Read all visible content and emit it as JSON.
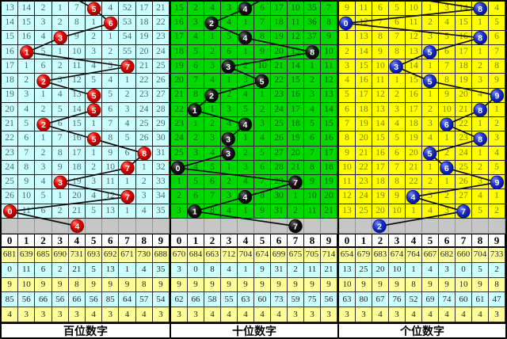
{
  "panels": [
    {
      "key": "hundreds",
      "footer_label": "百位数字",
      "colors": {
        "bg": "#ccffff",
        "text": "#4a6a6a",
        "ball": "#e60000",
        "ball_dark": "#8f0000",
        "ball_light": "#ff8a7a"
      },
      "header": [
        "0",
        "1",
        "2",
        "3",
        "4",
        "5",
        "6",
        "7",
        "8",
        "9"
      ],
      "rows": [
        [
          "13",
          "14",
          "2",
          "1",
          "7",
          "",
          "4",
          "52",
          "17",
          "21"
        ],
        [
          "14",
          "15",
          "3",
          "2",
          "8",
          "1",
          "",
          "53",
          "18",
          "22"
        ],
        [
          "15",
          "16",
          "4",
          "",
          "9",
          "2",
          "1",
          "54",
          "19",
          "23"
        ],
        [
          "16",
          "",
          "5",
          "1",
          "10",
          "3",
          "2",
          "55",
          "20",
          "24"
        ],
        [
          "17",
          "1",
          "6",
          "2",
          "11",
          "4",
          "3",
          "",
          "21",
          "25"
        ],
        [
          "18",
          "2",
          "",
          "3",
          "12",
          "5",
          "4",
          "1",
          "22",
          "26"
        ],
        [
          "19",
          "3",
          "1",
          "4",
          "13",
          "",
          "5",
          "2",
          "23",
          "27"
        ],
        [
          "20",
          "4",
          "2",
          "5",
          "14",
          "",
          "6",
          "3",
          "24",
          "28"
        ],
        [
          "21",
          "5",
          "",
          "6",
          "15",
          "1",
          "7",
          "4",
          "25",
          "29"
        ],
        [
          "22",
          "6",
          "1",
          "7",
          "16",
          "",
          "8",
          "5",
          "26",
          "30"
        ],
        [
          "23",
          "7",
          "2",
          "8",
          "17",
          "1",
          "9",
          "6",
          "",
          "31"
        ],
        [
          "24",
          "8",
          "3",
          "9",
          "18",
          "2",
          "10",
          "",
          "1",
          "32"
        ],
        [
          "25",
          "9",
          "4",
          "",
          "19",
          "3",
          "11",
          "1",
          "2",
          "33"
        ],
        [
          "26",
          "10",
          "5",
          "1",
          "20",
          "4",
          "12",
          "",
          "3",
          "34"
        ],
        [
          "",
          "11",
          "6",
          "2",
          "21",
          "5",
          "13",
          "1",
          "4",
          "35"
        ]
      ],
      "ball_cols": [
        5,
        6,
        3,
        1,
        7,
        2,
        5,
        5,
        2,
        5,
        8,
        7,
        3,
        7,
        0
      ],
      "ball_labels": [
        "5",
        "6",
        "3",
        "1",
        "7",
        "2",
        "5",
        "5",
        "2",
        "5",
        "8",
        "7",
        "3",
        "7",
        "0"
      ],
      "next_ball_col": 4,
      "next_ball_label": "4",
      "entry_col": 3,
      "stats": [
        [
          "681",
          "639",
          "685",
          "690",
          "731",
          "693",
          "692",
          "671",
          "730",
          "688"
        ],
        [
          "0",
          "11",
          "6",
          "2",
          "21",
          "5",
          "13",
          "1",
          "4",
          "35"
        ],
        [
          "9",
          "10",
          "9",
          "9",
          "8",
          "9",
          "9",
          "9",
          "8",
          "9"
        ],
        [
          "85",
          "56",
          "66",
          "56",
          "66",
          "56",
          "85",
          "64",
          "57",
          "54"
        ],
        [
          "4",
          "3",
          "3",
          "3",
          "3",
          "4",
          "3",
          "4",
          "4",
          "3"
        ]
      ]
    },
    {
      "key": "tens",
      "footer_label": "十位数字",
      "colors": {
        "bg": "#00d800",
        "text": "#0c5a0c",
        "ball": "#161616",
        "ball_dark": "#000000",
        "ball_light": "#6a6a6a"
      },
      "header": [
        "0",
        "1",
        "2",
        "3",
        "4",
        "5",
        "6",
        "7",
        "8",
        "9"
      ],
      "rows": [
        [
          "15",
          "2",
          "4",
          "3",
          "",
          "6",
          "17",
          "10",
          "35",
          "7"
        ],
        [
          "16",
          "3",
          "",
          "4",
          "1",
          "7",
          "18",
          "11",
          "36",
          "8"
        ],
        [
          "17",
          "4",
          "1",
          "5",
          "",
          "8",
          "19",
          "12",
          "37",
          "9"
        ],
        [
          "18",
          "5",
          "2",
          "6",
          "1",
          "9",
          "20",
          "13",
          "",
          "10"
        ],
        [
          "19",
          "6",
          "3",
          "",
          "2",
          "10",
          "21",
          "14",
          "1",
          "11"
        ],
        [
          "20",
          "7",
          "4",
          "1",
          "3",
          "",
          "22",
          "15",
          "2",
          "12"
        ],
        [
          "21",
          "8",
          "",
          "2",
          "4",
          "1",
          "23",
          "16",
          "3",
          "13"
        ],
        [
          "22",
          "",
          "1",
          "3",
          "5",
          "2",
          "24",
          "17",
          "4",
          "14"
        ],
        [
          "23",
          "1",
          "2",
          "4",
          "",
          "3",
          "25",
          "18",
          "5",
          "15"
        ],
        [
          "24",
          "2",
          "3",
          "",
          "1",
          "4",
          "26",
          "19",
          "6",
          "16"
        ],
        [
          "25",
          "3",
          "4",
          "",
          "2",
          "5",
          "27",
          "20",
          "7",
          "17"
        ],
        [
          "",
          "4",
          "5",
          "1",
          "3",
          "6",
          "28",
          "21",
          "8",
          "18"
        ],
        [
          "1",
          "5",
          "6",
          "2",
          "4",
          "7",
          "29",
          "",
          "9",
          "19"
        ],
        [
          "2",
          "6",
          "7",
          "3",
          "",
          "8",
          "30",
          "1",
          "10",
          "20"
        ],
        [
          "3",
          "",
          "8",
          "4",
          "1",
          "9",
          "31",
          "2",
          "11",
          "21"
        ]
      ],
      "ball_cols": [
        4,
        2,
        4,
        8,
        3,
        5,
        2,
        1,
        4,
        3,
        3,
        0,
        7,
        4,
        1
      ],
      "ball_labels": [
        "4",
        "2",
        "4",
        "8",
        "3",
        "5",
        "2",
        "1",
        "4",
        "3",
        "3",
        "0",
        "7",
        "4",
        "1"
      ],
      "next_ball_col": 7,
      "next_ball_label": "7",
      "entry_col": 6,
      "stats": [
        [
          "670",
          "684",
          "663",
          "712",
          "704",
          "674",
          "699",
          "675",
          "705",
          "714"
        ],
        [
          "3",
          "0",
          "8",
          "4",
          "1",
          "9",
          "31",
          "2",
          "11",
          "21"
        ],
        [
          "9",
          "9",
          "9",
          "9",
          "9",
          "9",
          "9",
          "9",
          "9",
          "9"
        ],
        [
          "62",
          "66",
          "58",
          "55",
          "63",
          "60",
          "73",
          "59",
          "75",
          "56"
        ],
        [
          "3",
          "3",
          "4",
          "4",
          "4",
          "4",
          "4",
          "3",
          "3",
          "3"
        ]
      ]
    },
    {
      "key": "units",
      "footer_label": "个位数字",
      "colors": {
        "bg": "#ffff00",
        "text": "#7f7f00",
        "ball": "#2233cc",
        "ball_dark": "#001090",
        "ball_light": "#7b8cff"
      },
      "header": [
        "0",
        "1",
        "2",
        "3",
        "4",
        "5",
        "6",
        "7",
        "8",
        "9"
      ],
      "rows": [
        [
          "9",
          "11",
          "6",
          "5",
          "10",
          "1",
          "3",
          "14",
          "",
          "4"
        ],
        [
          "",
          "12",
          "7",
          "6",
          "11",
          "2",
          "4",
          "15",
          "1",
          "5"
        ],
        [
          "1",
          "13",
          "8",
          "7",
          "12",
          "3",
          "5",
          "16",
          "",
          "6"
        ],
        [
          "2",
          "14",
          "9",
          "8",
          "13",
          "",
          "6",
          "17",
          "1",
          "7"
        ],
        [
          "3",
          "15",
          "10",
          "",
          "14",
          "1",
          "7",
          "18",
          "2",
          "8"
        ],
        [
          "4",
          "16",
          "11",
          "1",
          "15",
          "",
          "8",
          "19",
          "3",
          "9"
        ],
        [
          "5",
          "17",
          "12",
          "2",
          "16",
          "1",
          "9",
          "20",
          "4",
          ""
        ],
        [
          "6",
          "18",
          "13",
          "3",
          "17",
          "2",
          "10",
          "21",
          "",
          "1"
        ],
        [
          "7",
          "19",
          "14",
          "4",
          "18",
          "3",
          "",
          "22",
          "1",
          "2"
        ],
        [
          "8",
          "20",
          "15",
          "5",
          "19",
          "4",
          "1",
          "23",
          "",
          "3"
        ],
        [
          "9",
          "21",
          "16",
          "6",
          "20",
          "",
          "2",
          "24",
          "1",
          "4"
        ],
        [
          "10",
          "22",
          "17",
          "7",
          "21",
          "1",
          "",
          "25",
          "2",
          "5"
        ],
        [
          "11",
          "23",
          "18",
          "8",
          "22",
          "2",
          "1",
          "26",
          "3",
          ""
        ],
        [
          "12",
          "24",
          "19",
          "9",
          "",
          "3",
          "2",
          "27",
          "4",
          "1"
        ],
        [
          "13",
          "25",
          "20",
          "10",
          "1",
          "4",
          "3",
          "",
          "5",
          "2"
        ]
      ],
      "ball_cols": [
        8,
        0,
        8,
        5,
        3,
        5,
        9,
        8,
        6,
        8,
        5,
        6,
        9,
        4,
        7
      ],
      "ball_labels": [
        "8",
        "0",
        "8",
        "5",
        "3",
        "5",
        "9",
        "8",
        "6",
        "8",
        "5",
        "6",
        "9",
        "4",
        "7"
      ],
      "next_ball_col": 2,
      "next_ball_label": "2",
      "entry_col": 1,
      "stats": [
        [
          "654",
          "679",
          "683",
          "674",
          "764",
          "667",
          "682",
          "660",
          "704",
          "733"
        ],
        [
          "13",
          "25",
          "20",
          "10",
          "1",
          "4",
          "3",
          "0",
          "5",
          "2"
        ],
        [
          "10",
          "9",
          "9",
          "9",
          "8",
          "9",
          "9",
          "10",
          "9",
          "8"
        ],
        [
          "63",
          "80",
          "67",
          "76",
          "52",
          "69",
          "74",
          "60",
          "61",
          "47"
        ],
        [
          "3",
          "3",
          "4",
          "3",
          "4",
          "4",
          "4",
          "4",
          "4",
          "3"
        ]
      ]
    }
  ]
}
